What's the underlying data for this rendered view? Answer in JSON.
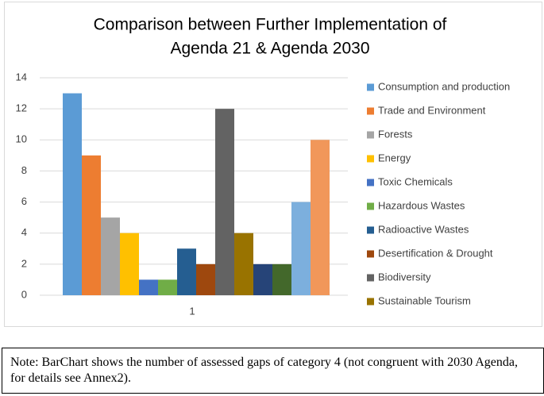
{
  "chart_data": {
    "type": "bar",
    "title": [
      "Comparison between Further Implementation of",
      "Agenda 21 & Agenda 2030"
    ],
    "categories": [
      "1"
    ],
    "series": [
      {
        "name": "Consumption and production",
        "color": "#5b9bd5",
        "values": [
          13
        ]
      },
      {
        "name": "Trade and Environment",
        "color": "#ed7d31",
        "values": [
          9
        ]
      },
      {
        "name": "Forests",
        "color": "#a5a5a5",
        "values": [
          5
        ]
      },
      {
        "name": "Energy",
        "color": "#ffc000",
        "values": [
          4
        ]
      },
      {
        "name": "Toxic Chemicals",
        "color": "#4472c4",
        "values": [
          1
        ]
      },
      {
        "name": "Hazardous Wastes",
        "color": "#70ad47",
        "values": [
          1
        ]
      },
      {
        "name": "Radioactive Wastes",
        "color": "#255e91",
        "values": [
          3
        ]
      },
      {
        "name": "Desertification & Drought",
        "color": "#9e480e",
        "values": [
          2
        ]
      },
      {
        "name": "Biodiversity",
        "color": "#636363",
        "values": [
          12
        ]
      },
      {
        "name": "Sustainable Tourism",
        "color": "#997300",
        "values": [
          4
        ]
      },
      {
        "color": "#264478",
        "values": [
          2
        ]
      },
      {
        "color": "#43682b",
        "values": [
          2
        ]
      },
      {
        "color": "#7cafdd",
        "values": [
          6
        ]
      },
      {
        "color": "#f1975a",
        "values": [
          10
        ]
      }
    ],
    "ylim": [
      0,
      14
    ],
    "yticks": [
      0,
      2,
      4,
      6,
      8,
      10,
      12,
      14
    ],
    "grid": true,
    "legend": "right"
  },
  "note": "Note: BarChart shows the number of assessed gaps of category 4 (not congruent with 2030 Agenda, for details see Annex2)."
}
